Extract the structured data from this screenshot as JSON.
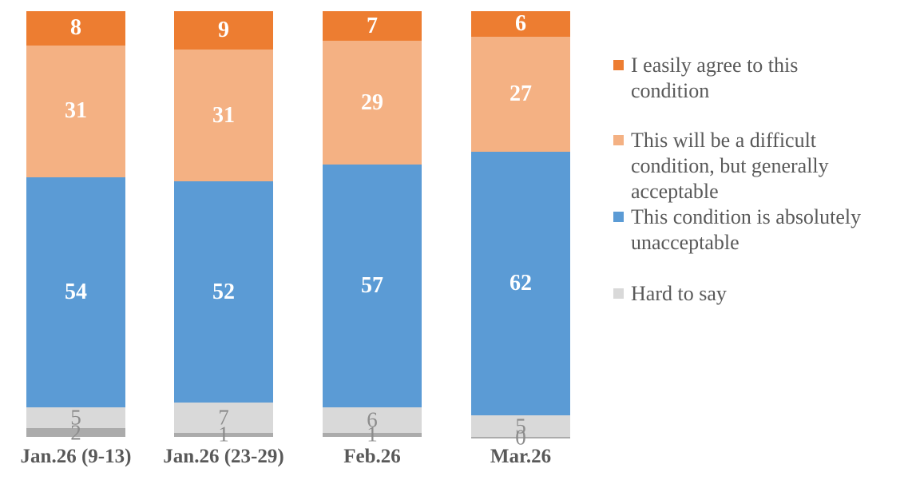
{
  "chart_data": {
    "type": "bar",
    "stacked": true,
    "stack_total": 100,
    "orientation": "vertical",
    "grid": false,
    "axes_visible": false,
    "legend_position": "right",
    "background_color": "#FFFFFF",
    "categories": [
      "Jan.26 (9-13)",
      "Jan.26 (23-29)",
      "Feb.26",
      "Mar.26"
    ],
    "series": [
      {
        "key": "easy-agree",
        "name": "I easily agree to this condition",
        "legend_label": "I easily agree to this\ncondition",
        "in_legend": true,
        "color": "#ED7D31",
        "label_color": "#FFFFFF",
        "values": [
          8,
          9,
          7,
          6
        ]
      },
      {
        "key": "difficult-but-acceptable",
        "name": "This will be a difficult condition, but generally acceptable",
        "legend_label": "This will be a difficult\ncondition, but generally\nacceptable",
        "in_legend": true,
        "color": "#F4B183",
        "label_color": "#FFFFFF",
        "values": [
          31,
          31,
          29,
          27
        ]
      },
      {
        "key": "absolutely-unacceptable",
        "name": "This condition is absolutely unacceptable",
        "legend_label": "This condition is absolutely\nunacceptable",
        "in_legend": true,
        "color": "#5B9BD5",
        "label_color": "#FFFFFF",
        "values": [
          54,
          52,
          57,
          62
        ]
      },
      {
        "key": "hard-to-say",
        "name": "Hard to say",
        "legend_label": "Hard to say",
        "in_legend": true,
        "color": "#D9D9D9",
        "label_color": "#8C8C8C",
        "values": [
          5,
          7,
          6,
          5
        ]
      },
      {
        "key": "other",
        "name": "",
        "legend_label": "",
        "in_legend": false,
        "color": "#ABABAB",
        "label_color": "#8C8C8C",
        "values": [
          2,
          1,
          1,
          0
        ]
      }
    ],
    "text_colors": {
      "category_labels": "#595959",
      "legend_text": "#595959",
      "muted_value_labels": "#8C8C8C",
      "value_labels": "#FFFFFF"
    }
  }
}
